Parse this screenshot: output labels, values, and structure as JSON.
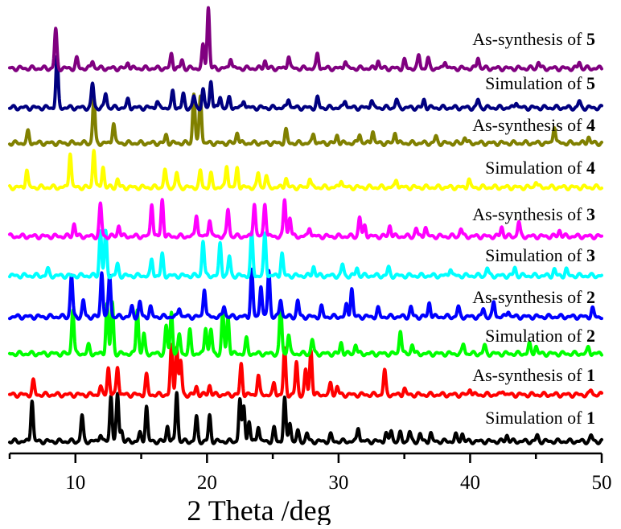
{
  "chart_data": {
    "type": "line",
    "xlabel": "2 Theta /deg",
    "ylabel": "",
    "xlim": [
      5,
      50
    ],
    "x_ticks": [
      10,
      20,
      30,
      40,
      50
    ],
    "grid": false,
    "legend": "none",
    "series": [
      {
        "name": "Simulation of 1",
        "label_text": "Simulation of ",
        "label_num": "1",
        "color": "#000000",
        "peaks": [
          [
            6.7,
            52
          ],
          [
            10.5,
            32
          ],
          [
            11.9,
            10
          ],
          [
            12.7,
            58
          ],
          [
            13.2,
            58
          ],
          [
            13.5,
            14
          ],
          [
            14.9,
            10
          ],
          [
            15.4,
            44
          ],
          [
            17.0,
            20
          ],
          [
            17.7,
            62
          ],
          [
            19.2,
            30
          ],
          [
            20.2,
            32
          ],
          [
            22.5,
            52
          ],
          [
            22.8,
            44
          ],
          [
            23.2,
            24
          ],
          [
            23.9,
            20
          ],
          [
            25.1,
            16
          ],
          [
            25.9,
            54
          ],
          [
            26.3,
            24
          ],
          [
            26.9,
            12
          ],
          [
            27.6,
            10
          ],
          [
            29.4,
            8
          ],
          [
            31.5,
            18
          ],
          [
            33.6,
            10
          ],
          [
            34.0,
            14
          ],
          [
            34.7,
            10
          ],
          [
            35.4,
            12
          ],
          [
            36.2,
            9
          ],
          [
            37.0,
            10
          ],
          [
            38.9,
            8
          ],
          [
            39.4,
            10
          ],
          [
            42.8,
            8
          ],
          [
            45.1,
            7
          ],
          [
            49.2,
            7
          ]
        ]
      },
      {
        "name": "As-synthesis of 1",
        "label_text": "As-synthesis of ",
        "label_num": "1",
        "color": "#ff0000",
        "peaks": [
          [
            6.8,
            17
          ],
          [
            11.9,
            10
          ],
          [
            12.5,
            34
          ],
          [
            13.2,
            36
          ],
          [
            15.4,
            24
          ],
          [
            17.3,
            60
          ],
          [
            17.7,
            60
          ],
          [
            18.0,
            42
          ],
          [
            19.2,
            10
          ],
          [
            20.2,
            12
          ],
          [
            22.6,
            38
          ],
          [
            23.9,
            24
          ],
          [
            25.1,
            14
          ],
          [
            25.9,
            56
          ],
          [
            26.8,
            40
          ],
          [
            27.5,
            30
          ],
          [
            27.9,
            56
          ],
          [
            29.4,
            14
          ],
          [
            29.9,
            10
          ],
          [
            33.5,
            30
          ],
          [
            35.0,
            8
          ],
          [
            40.0,
            8
          ],
          [
            42.5,
            6
          ],
          [
            49.2,
            6
          ]
        ]
      },
      {
        "name": "Simulation of 2",
        "label_text": "Simulation of ",
        "label_num": "2",
        "color": "#00ff00",
        "peaks": [
          [
            9.8,
            56
          ],
          [
            11.0,
            10
          ],
          [
            12.4,
            62
          ],
          [
            12.8,
            64
          ],
          [
            14.7,
            56
          ],
          [
            15.2,
            24
          ],
          [
            16.9,
            34
          ],
          [
            17.3,
            52
          ],
          [
            17.9,
            24
          ],
          [
            18.7,
            28
          ],
          [
            19.9,
            34
          ],
          [
            20.3,
            30
          ],
          [
            21.2,
            50
          ],
          [
            21.6,
            46
          ],
          [
            23.0,
            18
          ],
          [
            25.6,
            60
          ],
          [
            26.2,
            24
          ],
          [
            28.0,
            18
          ],
          [
            30.2,
            14
          ],
          [
            31.3,
            12
          ],
          [
            34.7,
            30
          ],
          [
            35.6,
            12
          ],
          [
            39.5,
            12
          ],
          [
            41.1,
            10
          ],
          [
            44.5,
            12
          ],
          [
            45.0,
            10
          ],
          [
            49.0,
            8
          ]
        ]
      },
      {
        "name": "As-synthesis of 2",
        "label_text": "As-synthesis of ",
        "label_num": "2",
        "color": "#0000ff",
        "peaks": [
          [
            9.7,
            52
          ],
          [
            10.6,
            20
          ],
          [
            12.0,
            56
          ],
          [
            12.6,
            52
          ],
          [
            14.3,
            12
          ],
          [
            14.9,
            18
          ],
          [
            15.7,
            12
          ],
          [
            17.9,
            12
          ],
          [
            19.8,
            36
          ],
          [
            21.3,
            14
          ],
          [
            23.4,
            58
          ],
          [
            24.1,
            40
          ],
          [
            24.7,
            58
          ],
          [
            25.6,
            22
          ],
          [
            26.9,
            20
          ],
          [
            28.7,
            12
          ],
          [
            30.6,
            14
          ],
          [
            31.0,
            36
          ],
          [
            33.0,
            10
          ],
          [
            35.5,
            12
          ],
          [
            36.9,
            18
          ],
          [
            39.1,
            12
          ],
          [
            41.0,
            10
          ],
          [
            41.8,
            18
          ],
          [
            42.9,
            8
          ],
          [
            49.3,
            10
          ]
        ]
      },
      {
        "name": "Simulation of 3",
        "label_text": "Simulation of ",
        "label_num": "3",
        "color": "#00ffff",
        "peaks": [
          [
            7.9,
            8
          ],
          [
            11.9,
            56
          ],
          [
            12.3,
            54
          ],
          [
            13.2,
            14
          ],
          [
            15.8,
            20
          ],
          [
            16.6,
            26
          ],
          [
            19.7,
            44
          ],
          [
            21.0,
            40
          ],
          [
            21.7,
            24
          ],
          [
            23.4,
            52
          ],
          [
            24.4,
            52
          ],
          [
            25.7,
            28
          ],
          [
            28.1,
            12
          ],
          [
            30.3,
            14
          ],
          [
            31.4,
            10
          ],
          [
            33.8,
            10
          ],
          [
            38.5,
            10
          ],
          [
            41.3,
            10
          ],
          [
            43.4,
            10
          ],
          [
            46.4,
            8
          ],
          [
            47.3,
            8
          ]
        ]
      },
      {
        "name": "As-synthesis of 3",
        "label_text": "As-synthesis of ",
        "label_num": "3",
        "color": "#ff00ff",
        "peaks": [
          [
            9.9,
            16
          ],
          [
            11.9,
            40
          ],
          [
            13.3,
            14
          ],
          [
            15.8,
            42
          ],
          [
            16.6,
            46
          ],
          [
            19.2,
            28
          ],
          [
            20.2,
            22
          ],
          [
            21.6,
            34
          ],
          [
            23.6,
            42
          ],
          [
            24.4,
            42
          ],
          [
            25.9,
            46
          ],
          [
            26.3,
            24
          ],
          [
            27.8,
            12
          ],
          [
            31.6,
            24
          ],
          [
            32.0,
            14
          ],
          [
            33.9,
            14
          ],
          [
            35.9,
            10
          ],
          [
            36.6,
            12
          ],
          [
            39.3,
            10
          ],
          [
            42.4,
            12
          ],
          [
            43.7,
            18
          ],
          [
            46.8,
            8
          ]
        ]
      },
      {
        "name": "Simulation of 4",
        "label_text": "Simulation of ",
        "label_num": "4",
        "color": "#ffff00",
        "peaks": [
          [
            6.3,
            22
          ],
          [
            9.6,
            44
          ],
          [
            11.4,
            48
          ],
          [
            12.1,
            26
          ],
          [
            13.2,
            10
          ],
          [
            16.8,
            22
          ],
          [
            17.7,
            18
          ],
          [
            19.5,
            20
          ],
          [
            20.3,
            16
          ],
          [
            21.5,
            28
          ],
          [
            22.3,
            24
          ],
          [
            23.9,
            18
          ],
          [
            24.5,
            14
          ],
          [
            26.0,
            12
          ],
          [
            27.8,
            12
          ],
          [
            30.2,
            10
          ],
          [
            34.4,
            10
          ],
          [
            39.9,
            10
          ],
          [
            45.0,
            8
          ]
        ]
      },
      {
        "name": "As-synthesis of 4",
        "label_text": "As-synthesis of ",
        "label_num": "4",
        "color": "#808000",
        "peaks": [
          [
            6.4,
            14
          ],
          [
            11.4,
            56
          ],
          [
            12.9,
            26
          ],
          [
            16.9,
            10
          ],
          [
            19.0,
            62
          ],
          [
            19.5,
            60
          ],
          [
            22.3,
            14
          ],
          [
            26.0,
            16
          ],
          [
            28.1,
            12
          ],
          [
            29.9,
            10
          ],
          [
            31.6,
            12
          ],
          [
            32.6,
            16
          ],
          [
            34.3,
            14
          ],
          [
            37.4,
            8
          ],
          [
            39.6,
            8
          ],
          [
            46.4,
            22
          ],
          [
            49.0,
            8
          ]
        ]
      },
      {
        "name": "Simulation of 5",
        "label_text": "Simulation of ",
        "label_num": "5",
        "color": "#000080",
        "peaks": [
          [
            8.6,
            62
          ],
          [
            11.3,
            30
          ],
          [
            12.3,
            18
          ],
          [
            14.0,
            10
          ],
          [
            16.2,
            8
          ],
          [
            17.4,
            20
          ],
          [
            18.2,
            16
          ],
          [
            19.0,
            14
          ],
          [
            19.7,
            22
          ],
          [
            20.3,
            34
          ],
          [
            21.0,
            14
          ],
          [
            21.7,
            12
          ],
          [
            22.8,
            10
          ],
          [
            26.2,
            12
          ],
          [
            28.4,
            12
          ],
          [
            30.5,
            10
          ],
          [
            32.5,
            10
          ],
          [
            34.4,
            10
          ],
          [
            36.5,
            10
          ],
          [
            40.6,
            10
          ],
          [
            43.5,
            8
          ],
          [
            48.3,
            8
          ]
        ]
      },
      {
        "name": "As-synthesis of 5",
        "label_text": "As-synthesis of ",
        "label_num": "5",
        "color": "#800080",
        "peaks": [
          [
            8.5,
            48
          ],
          [
            10.1,
            12
          ],
          [
            11.3,
            10
          ],
          [
            14.0,
            8
          ],
          [
            17.3,
            18
          ],
          [
            18.1,
            10
          ],
          [
            19.7,
            28
          ],
          [
            20.1,
            76
          ],
          [
            21.8,
            14
          ],
          [
            24.4,
            10
          ],
          [
            26.2,
            16
          ],
          [
            28.4,
            18
          ],
          [
            30.5,
            10
          ],
          [
            33.0,
            10
          ],
          [
            35.0,
            10
          ],
          [
            36.1,
            16
          ],
          [
            36.8,
            12
          ],
          [
            38.1,
            10
          ],
          [
            40.6,
            14
          ],
          [
            45.2,
            8
          ],
          [
            48.3,
            8
          ]
        ]
      }
    ]
  }
}
